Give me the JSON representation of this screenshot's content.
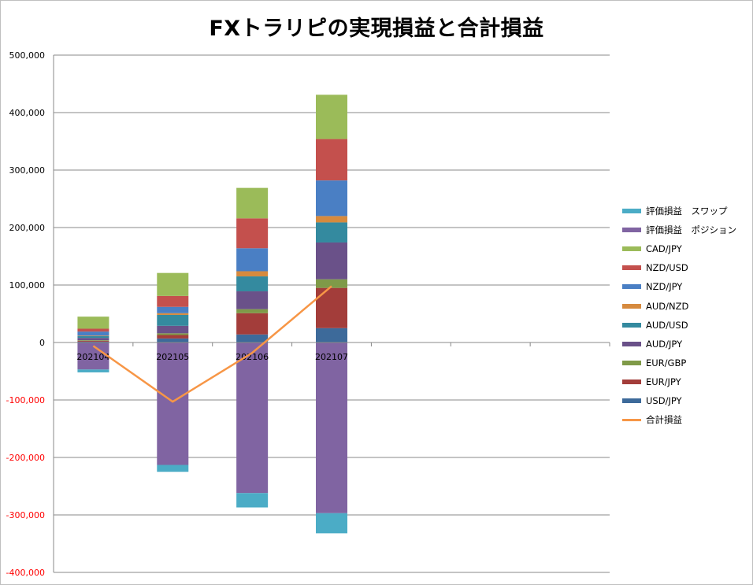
{
  "chart_data": {
    "type": "bar",
    "stacked": true,
    "title": "FXトラリピの実現損益と合計損益",
    "categories": [
      "202104",
      "202105",
      "202106",
      "202107",
      "",
      "",
      ""
    ],
    "ylim": [
      -400000,
      500000
    ],
    "yticks": [
      "500,000",
      "400,000",
      "300,000",
      "200,000",
      "100,000",
      "0",
      "-100,000",
      "-200,000",
      "-300,000",
      "-400,000"
    ],
    "ytick_values": [
      500000,
      400000,
      300000,
      200000,
      100000,
      0,
      -100000,
      -200000,
      -300000,
      -400000
    ],
    "negative_tick_color": "#ff0000",
    "grid": true,
    "legend_position": "right",
    "series": [
      {
        "name": "USD/JPY",
        "color": "#3d6a9a",
        "values": [
          1500,
          7000,
          14000,
          25000,
          null,
          null,
          null
        ]
      },
      {
        "name": "EUR/JPY",
        "color": "#a33d3a",
        "values": [
          1500,
          6000,
          37000,
          70000,
          null,
          null,
          null
        ]
      },
      {
        "name": "EUR/GBP",
        "color": "#7f9a48",
        "values": [
          1000,
          3000,
          7000,
          15000,
          null,
          null,
          null
        ]
      },
      {
        "name": "AUD/JPY",
        "color": "#6a5189",
        "values": [
          4000,
          13000,
          31000,
          64000,
          null,
          null,
          null
        ]
      },
      {
        "name": "AUD/USD",
        "color": "#348a9f",
        "values": [
          3000,
          19000,
          26000,
          35000,
          null,
          null,
          null
        ]
      },
      {
        "name": "AUD/NZD",
        "color": "#d68a3e",
        "values": [
          1000,
          3000,
          9000,
          11000,
          null,
          null,
          null
        ]
      },
      {
        "name": "NZD/JPY",
        "color": "#4a7fc4",
        "values": [
          7000,
          11000,
          40000,
          62000,
          null,
          null,
          null
        ]
      },
      {
        "name": "NZD/USD",
        "color": "#c4504d",
        "values": [
          5000,
          19000,
          52000,
          72000,
          null,
          null,
          null
        ]
      },
      {
        "name": "CAD/JPY",
        "color": "#9bbb59",
        "values": [
          21000,
          40000,
          53000,
          77000,
          null,
          null,
          null
        ]
      },
      {
        "name": "評価損益　ポジション",
        "color": "#8064a2",
        "values": [
          -47000,
          -213000,
          -262000,
          -297000,
          null,
          null,
          null
        ]
      },
      {
        "name": "評価損益　スワップ",
        "color": "#4bacc6",
        "values": [
          -5000,
          -12000,
          -25000,
          -35000,
          null,
          null,
          null
        ]
      }
    ],
    "line_series": {
      "name": "合計損益",
      "color": "#f79646",
      "values": [
        -6000,
        -103000,
        -18000,
        98000,
        null,
        null,
        null
      ]
    },
    "legend_order": [
      "評価損益　スワップ",
      "評価損益　ポジション",
      "CAD/JPY",
      "NZD/USD",
      "NZD/JPY",
      "AUD/NZD",
      "AUD/USD",
      "AUD/JPY",
      "EUR/GBP",
      "EUR/JPY",
      "USD/JPY",
      "合計損益"
    ]
  }
}
